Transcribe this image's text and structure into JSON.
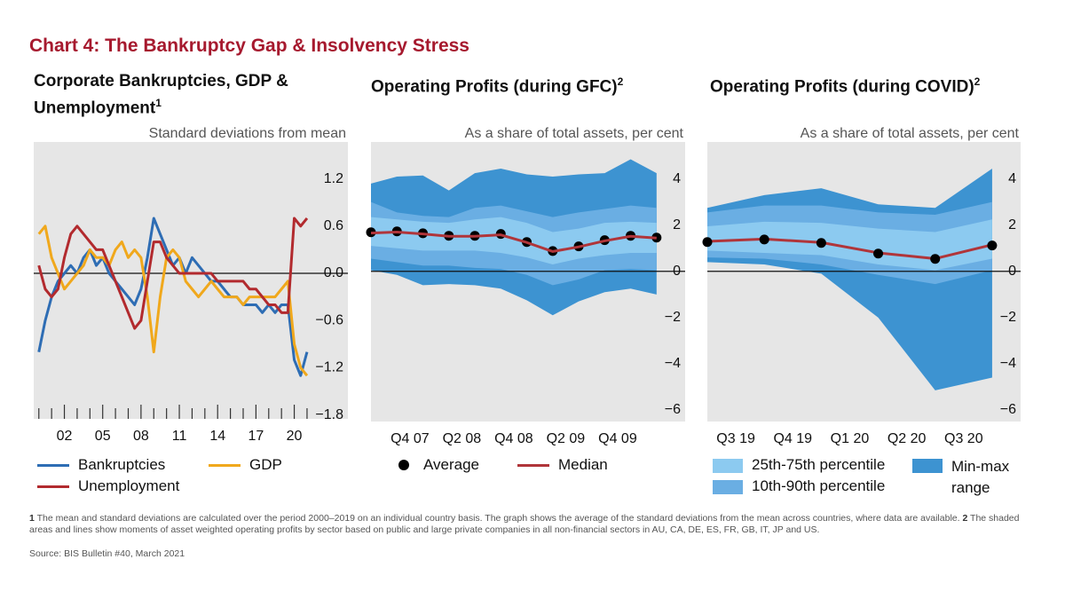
{
  "title": "Chart 4: The Bankruptcy Gap & Insolvency Stress",
  "chart_data": [
    {
      "type": "line",
      "title": "Corporate Bankruptcies, GDP & Unemployment",
      "title_sup": "1",
      "subtitle": "Standard deviations from mean",
      "x": [
        2000,
        2000.5,
        2001,
        2001.5,
        2002,
        2002.5,
        2003,
        2003.5,
        2004,
        2004.5,
        2005,
        2005.5,
        2006,
        2006.5,
        2007,
        2007.5,
        2008,
        2008.5,
        2009,
        2009.5,
        2010,
        2010.5,
        2011,
        2011.5,
        2012,
        2012.5,
        2013,
        2013.5,
        2014,
        2014.5,
        2015,
        2015.5,
        2016,
        2016.5,
        2017,
        2017.5,
        2018,
        2018.5,
        2019,
        2019.5,
        2020,
        2020.5,
        2021
      ],
      "series": [
        {
          "name": "Bankruptcies",
          "color": "#2e6db4",
          "values": [
            -1.0,
            -0.6,
            -0.3,
            -0.1,
            0.0,
            0.1,
            0.0,
            0.2,
            0.3,
            0.1,
            0.2,
            0.0,
            -0.1,
            -0.2,
            -0.3,
            -0.4,
            -0.2,
            0.2,
            0.7,
            0.5,
            0.3,
            0.1,
            0.2,
            0.0,
            0.2,
            0.1,
            0.0,
            -0.1,
            -0.1,
            -0.2,
            -0.3,
            -0.3,
            -0.4,
            -0.4,
            -0.4,
            -0.5,
            -0.4,
            -0.5,
            -0.4,
            -0.4,
            -1.1,
            -1.3,
            -1.0
          ]
        },
        {
          "name": "GDP",
          "color": "#f0a81c",
          "values": [
            0.5,
            0.6,
            0.2,
            0.0,
            -0.2,
            -0.1,
            0.0,
            0.1,
            0.3,
            0.2,
            0.2,
            0.1,
            0.3,
            0.4,
            0.2,
            0.3,
            0.2,
            -0.3,
            -1.0,
            -0.3,
            0.2,
            0.3,
            0.2,
            -0.1,
            -0.2,
            -0.3,
            -0.2,
            -0.1,
            -0.2,
            -0.3,
            -0.3,
            -0.3,
            -0.4,
            -0.3,
            -0.3,
            -0.3,
            -0.3,
            -0.3,
            -0.2,
            -0.1,
            -0.9,
            -1.2,
            -1.3
          ]
        },
        {
          "name": "Unemployment",
          "color": "#b22a2e",
          "values": [
            0.1,
            -0.2,
            -0.3,
            -0.2,
            0.2,
            0.5,
            0.6,
            0.5,
            0.4,
            0.3,
            0.3,
            0.1,
            -0.1,
            -0.3,
            -0.5,
            -0.7,
            -0.6,
            -0.1,
            0.4,
            0.4,
            0.2,
            0.1,
            0.0,
            0.0,
            0.0,
            0.0,
            0.0,
            0.0,
            -0.1,
            -0.1,
            -0.1,
            -0.1,
            -0.1,
            -0.2,
            -0.2,
            -0.3,
            -0.4,
            -0.4,
            -0.5,
            -0.5,
            0.7,
            0.6,
            0.7
          ]
        }
      ],
      "xlim": [
        1999.6,
        2024.2
      ],
      "xticks": [
        {
          "value": 2002,
          "label": "02"
        },
        {
          "value": 2005,
          "label": "05"
        },
        {
          "value": 2008,
          "label": "08"
        },
        {
          "value": 2011,
          "label": "11"
        },
        {
          "value": 2014,
          "label": "14"
        },
        {
          "value": 2017,
          "label": "17"
        },
        {
          "value": 2020,
          "label": "20"
        }
      ],
      "xminorticks": [
        2000,
        2001,
        2003,
        2004,
        2006,
        2007,
        2009,
        2010,
        2012,
        2013,
        2015,
        2016,
        2018,
        2019,
        2021
      ],
      "ylim": [
        -1.85,
        1.67
      ],
      "yticks": [
        1.2,
        0.6,
        {
          "value": 0,
          "label": "0.0"
        },
        {
          "value": -0.6,
          "label": "−0.6"
        },
        {
          "value": -1.2,
          "label": "−1.2"
        },
        {
          "value": -1.8,
          "label": "−1.8"
        }
      ]
    },
    {
      "type": "range",
      "title": "Operating Profits (during GFC)",
      "title_sup": "2",
      "subtitle": "As a share of total assets, per cent",
      "categories": [
        null,
        null,
        "Q4 07",
        null,
        "Q2 08",
        null,
        "Q4 08",
        null,
        "Q2 09",
        null,
        "Q4 09",
        null
      ],
      "bands": [
        {
          "color": "#3d93d1",
          "low": [
            0.05,
            -0.15,
            -0.6,
            -0.55,
            -0.6,
            -0.75,
            -1.25,
            -1.9,
            -1.3,
            -0.9,
            -0.75,
            -1.0
          ],
          "high": [
            3.8,
            4.1,
            4.15,
            3.5,
            4.25,
            4.45,
            4.2,
            4.1,
            4.2,
            4.25,
            4.85,
            4.25
          ]
        },
        {
          "color": "#6aaee3",
          "low": [
            0.55,
            0.4,
            0.25,
            0.25,
            0.15,
            0.1,
            -0.15,
            -0.6,
            -0.35,
            0.05,
            0.1,
            0.05
          ],
          "high": [
            3.0,
            2.55,
            2.4,
            2.35,
            2.75,
            2.85,
            2.6,
            2.35,
            2.55,
            2.7,
            2.85,
            2.75
          ]
        },
        {
          "color": "#8ccaf0",
          "low": [
            1.1,
            1.0,
            0.9,
            0.9,
            0.9,
            0.8,
            0.6,
            0.3,
            0.55,
            0.7,
            0.8,
            0.8
          ],
          "high": [
            2.35,
            2.25,
            2.15,
            2.1,
            2.25,
            2.35,
            2.1,
            1.7,
            1.85,
            2.1,
            2.15,
            2.1
          ]
        }
      ],
      "series": [
        {
          "name": "Average",
          "color": "#000000",
          "style": "dots",
          "values": [
            1.69,
            1.73,
            1.65,
            1.54,
            1.54,
            1.62,
            1.27,
            0.88,
            1.08,
            1.35,
            1.54,
            1.46
          ]
        },
        {
          "name": "Median",
          "color": "#b0353a",
          "style": "line",
          "values": [
            1.66,
            1.7,
            1.62,
            1.52,
            1.52,
            1.58,
            1.25,
            0.86,
            1.06,
            1.32,
            1.52,
            1.44
          ]
        }
      ],
      "ylim": [
        -6.5,
        5.6
      ],
      "yticks": [
        4,
        2,
        0,
        {
          "value": -2,
          "label": "−2"
        },
        {
          "value": -4,
          "label": "−4"
        },
        {
          "value": -6,
          "label": "−6"
        }
      ]
    },
    {
      "type": "range",
      "title": "Operating Profits (during COVID)",
      "title_sup": "2",
      "subtitle": "As a share of total assets, per cent",
      "categories": [
        null,
        "Q3 19",
        "Q4 19",
        "Q1 20",
        "Q2 20",
        "Q3 20"
      ],
      "bands": [
        {
          "name": "Min-max range",
          "color": "#3d93d1",
          "low": [
            0.4,
            0.3,
            -0.1,
            -2.0,
            -5.15,
            -4.6
          ],
          "high": [
            2.75,
            3.3,
            3.6,
            2.9,
            2.75,
            4.45
          ]
        },
        {
          "name": "10th-90th percentile",
          "color": "#6aaee3",
          "low": [
            0.6,
            0.55,
            0.3,
            -0.15,
            -0.55,
            0.05
          ],
          "high": [
            2.55,
            2.85,
            2.85,
            2.55,
            2.45,
            3.0
          ]
        },
        {
          "name": "25th-75th percentile",
          "color": "#8ccaf0",
          "low": [
            0.9,
            0.8,
            0.7,
            0.3,
            0.05,
            0.55
          ],
          "high": [
            1.95,
            2.15,
            2.1,
            1.85,
            1.7,
            2.25
          ]
        }
      ],
      "series": [
        {
          "color": "#b0353a",
          "style": "line",
          "values": [
            1.3,
            1.4,
            1.25,
            0.8,
            0.55,
            1.15
          ]
        },
        {
          "color": "#000000",
          "style": "dots",
          "values": [
            1.27,
            1.38,
            1.23,
            0.77,
            0.54,
            1.12
          ]
        }
      ],
      "ylim": [
        -6.5,
        5.6
      ],
      "yticks": [
        4,
        2,
        0,
        {
          "value": -2,
          "label": "−2"
        },
        {
          "value": -4,
          "label": "−4"
        },
        {
          "value": -6,
          "label": "−6"
        }
      ]
    }
  ],
  "notes": [
    {
      "num": "1",
      "text": "The mean and standard deviations are calculated over the period 2000–2019 on an individual country basis. The graph shows the average of the standard deviations from the mean across countries, where data are available."
    },
    {
      "num": "2",
      "text": "The shaded areas and lines show moments of asset weighted operating profits by sector based on public and large private companies in all non-financial sectors in AU, CA, DE, ES, FR, GB, IT, JP and US."
    }
  ],
  "source": "Source: BIS Bulletin #40, March 2021"
}
